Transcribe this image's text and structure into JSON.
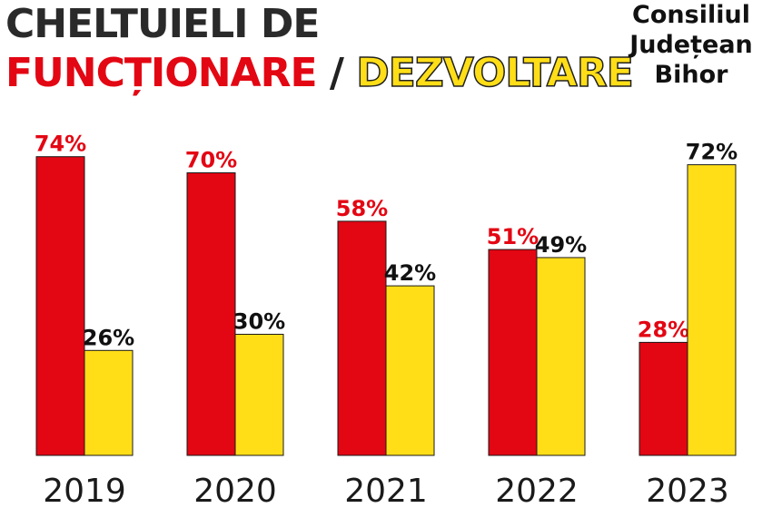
{
  "header": {
    "title_line1": "CHELTUIELI DE",
    "title_red": "FUNCȚIONARE",
    "title_slash": "/",
    "title_yellow": "DEZVOLTARE",
    "publisher_lines": [
      "Consiliul",
      "Județean",
      "Bihor"
    ]
  },
  "chart_data": {
    "type": "bar",
    "title": "CHELTUIELI DE FUNCȚIONARE / DEZVOLTARE",
    "categories": [
      "2019",
      "2020",
      "2021",
      "2022",
      "2023"
    ],
    "series": [
      {
        "name": "FUNCȚIONARE",
        "color": "#e30613",
        "values": [
          74,
          70,
          58,
          51,
          28
        ],
        "labels": [
          "74%",
          "70%",
          "58%",
          "51%",
          "28%"
        ]
      },
      {
        "name": "DEZVOLTARE",
        "color": "#ffde17",
        "values": [
          26,
          30,
          42,
          49,
          72
        ],
        "labels": [
          "26%",
          "30%",
          "42%",
          "49%",
          "72%"
        ]
      }
    ],
    "ylim": [
      0,
      100
    ],
    "xlabel": "",
    "ylabel": "",
    "grid": false,
    "label_colors": {
      "FUNCȚIONARE": "#e30613",
      "DEZVOLTARE": "#111111"
    }
  }
}
